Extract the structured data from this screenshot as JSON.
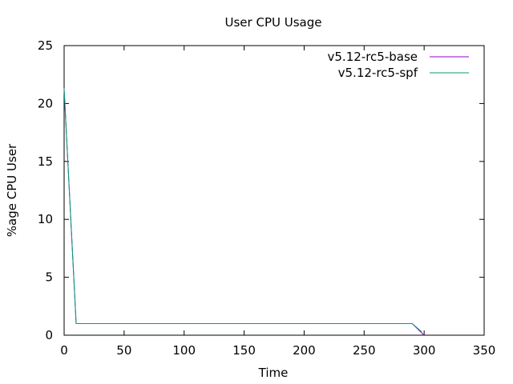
{
  "chart_data": {
    "type": "line",
    "title": "User CPU Usage",
    "xlabel": "Time",
    "ylabel": "%age CPU User",
    "xlim": [
      0,
      350
    ],
    "ylim": [
      0,
      25
    ],
    "xticks": [
      0,
      50,
      100,
      150,
      200,
      250,
      300,
      350
    ],
    "yticks": [
      0,
      5,
      10,
      15,
      20,
      25
    ],
    "grid": false,
    "legend_position": "top-right",
    "series": [
      {
        "name": "v5.12-rc5-base",
        "color": "#9400d3",
        "x": [
          0,
          10,
          290,
          300
        ],
        "y": [
          21.2,
          1.0,
          1.0,
          0.0
        ]
      },
      {
        "name": "v5.12-rc5-spf",
        "color": "#009e73",
        "x": [
          0,
          10,
          290,
          298
        ],
        "y": [
          21.3,
          1.0,
          1.0,
          0.3
        ]
      }
    ]
  }
}
